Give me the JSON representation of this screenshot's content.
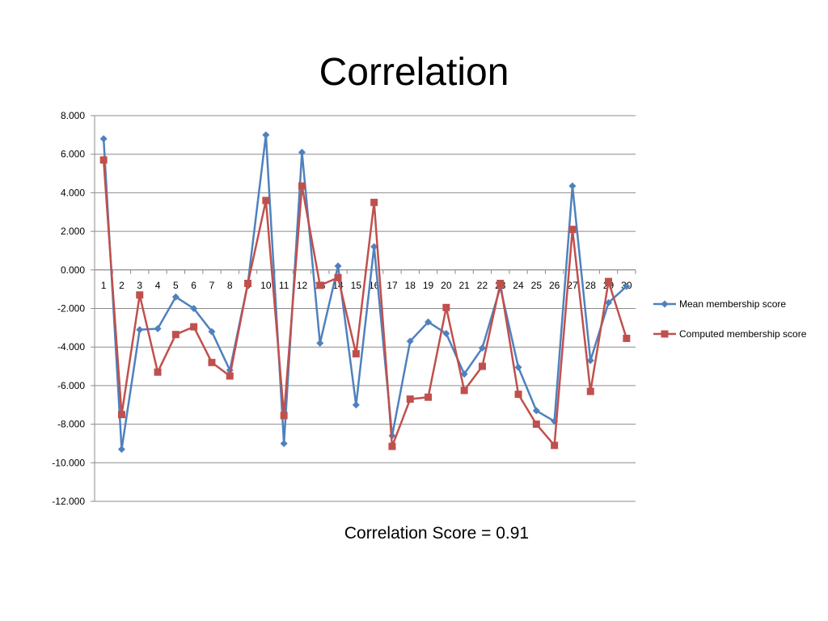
{
  "slide": {
    "title": "Correlation",
    "correlation_score": "Correlation Score = 0.91"
  },
  "chart_data": {
    "type": "line",
    "title": "",
    "xlabel": "",
    "ylabel": "",
    "categories": [
      "1",
      "2",
      "3",
      "4",
      "5",
      "6",
      "7",
      "8",
      "9",
      "10",
      "11",
      "12",
      "13",
      "14",
      "15",
      "16",
      "17",
      "18",
      "19",
      "20",
      "21",
      "22",
      "23",
      "24",
      "25",
      "26",
      "27",
      "28",
      "29",
      "30"
    ],
    "ylim": [
      -12,
      8
    ],
    "y_ticks": [
      "8.000",
      "6.000",
      "4.000",
      "2.000",
      "0.000",
      "-2.000",
      "-4.000",
      "-6.000",
      "-8.000",
      "-10.000",
      "-12.000"
    ],
    "grid": true,
    "legend_position": "right",
    "series": [
      {
        "name": "Mean membership score",
        "color": "#4F81BD",
        "marker": "diamond",
        "values": [
          6.8,
          -9.3,
          -3.1,
          -3.05,
          -1.4,
          -2.0,
          -3.2,
          -5.2,
          -0.7,
          7.0,
          -9.0,
          6.1,
          -3.8,
          0.2,
          -7.0,
          1.2,
          -8.6,
          -3.7,
          -2.7,
          -3.3,
          -5.4,
          -4.05,
          -0.9,
          -5.05,
          -7.3,
          -7.85,
          4.35,
          -4.7,
          -1.7,
          -0.85
        ]
      },
      {
        "name": "Computed membership score",
        "color": "#C0504D",
        "marker": "square",
        "values": [
          5.7,
          -7.5,
          -1.3,
          -5.3,
          -3.35,
          -2.95,
          -4.8,
          -5.5,
          -0.7,
          3.6,
          -7.55,
          4.35,
          -0.8,
          -0.4,
          -4.35,
          3.5,
          -9.15,
          -6.7,
          -6.6,
          -1.95,
          -6.25,
          -5.0,
          -0.7,
          -6.45,
          -8.0,
          -9.1,
          2.1,
          -6.3,
          -0.6,
          -3.55
        ]
      }
    ]
  }
}
